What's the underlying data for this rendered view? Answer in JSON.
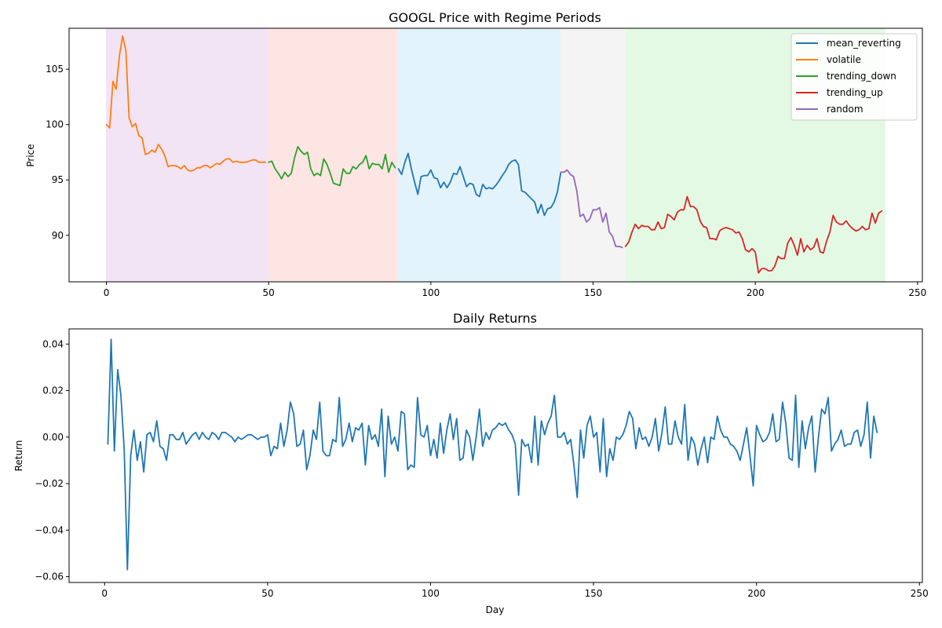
{
  "chart_data": [
    {
      "type": "line",
      "title": "GOOGL Price with Regime Periods",
      "xlabel": "",
      "ylabel": "Price",
      "xlim": [
        -11.5,
        251.5
      ],
      "ylim": [
        85.8,
        108.7
      ],
      "xticks": [
        0,
        50,
        100,
        150,
        200,
        250
      ],
      "yticks": [
        90,
        95,
        100,
        105
      ],
      "legend_placement": "top-right",
      "regions": [
        {
          "x0": 0,
          "x1": 50,
          "color": "#f2e3f5"
        },
        {
          "x0": 50,
          "x1": 90,
          "color": "#fde5e3"
        },
        {
          "x0": 90,
          "x1": 140,
          "color": "#e3f3fc"
        },
        {
          "x0": 140,
          "x1": 160,
          "color": "#f4f4f4"
        },
        {
          "x0": 160,
          "x1": 240,
          "color": "#e3f9e3"
        }
      ],
      "series": [
        {
          "name": "mean_reverting",
          "color": "#1f77b4",
          "segments": [
            {
              "x0": 90,
              "values": [
                96.0,
                95.5,
                96.6,
                97.4,
                96.0,
                94.8,
                93.7,
                95.3,
                95.4,
                95.4,
                95.9,
                95.2,
                95.1,
                94.3,
                94.8,
                94.3,
                94.8,
                95.6,
                95.5,
                96.2,
                95.3,
                94.4,
                94.7,
                94.6,
                93.7,
                93.5,
                94.6,
                94.2,
                94.3,
                94.2,
                94.5,
                94.9,
                95.4,
                95.8,
                96.4,
                96.7,
                96.8,
                96.4,
                94.0,
                93.9,
                93.6,
                93.3,
                93.0,
                92.0,
                92.8,
                91.8,
                92.4,
                92.5,
                93.0,
                93.9,
                95.6
              ]
            }
          ]
        },
        {
          "name": "volatile",
          "color": "#ff7f0e",
          "segments": [
            {
              "x0": 0,
              "values": [
                100.0,
                99.7,
                103.9,
                103.2,
                106.2,
                108.0,
                106.7,
                100.6,
                99.8,
                100.1,
                99.0,
                98.8,
                97.3,
                97.4,
                97.7,
                97.5,
                98.2,
                97.8,
                97.2,
                96.2,
                96.3,
                96.3,
                96.2,
                96.0,
                96.3,
                95.9,
                95.8,
                95.9,
                96.1,
                96.1,
                96.3,
                96.3,
                96.1,
                96.3,
                96.5,
                96.4,
                96.7,
                96.9,
                96.9,
                96.6,
                96.7,
                96.6,
                96.6,
                96.6,
                96.7,
                96.8,
                96.8,
                96.6,
                96.6,
                96.6
              ]
            }
          ]
        },
        {
          "name": "trending_down",
          "color": "#2ca02c",
          "segments": [
            {
              "x0": 50,
              "values": [
                96.6,
                96.7,
                96.0,
                95.6,
                95.1,
                95.7,
                95.3,
                95.6,
                97.0,
                98.0,
                97.6,
                97.3,
                97.5,
                96.0,
                95.4,
                95.6,
                95.4,
                96.9,
                96.4,
                95.6,
                94.7,
                94.6,
                94.5,
                96.0,
                95.6,
                95.6,
                96.2,
                96.0,
                96.4,
                96.6,
                97.2,
                96.0,
                96.5,
                96.4,
                96.4,
                96.0,
                97.3,
                95.7,
                96.6,
                96.1
              ]
            }
          ]
        },
        {
          "name": "trending_up",
          "color": "#d62728",
          "segments": [
            {
              "x0": 160,
              "values": [
                89.0,
                89.4,
                90.3,
                91.0,
                90.6,
                90.9,
                90.8,
                90.8,
                90.5,
                90.5,
                91.2,
                90.6,
                90.7,
                91.9,
                91.7,
                91.4,
                92.1,
                92.3,
                92.3,
                93.5,
                92.6,
                92.6,
                92.3,
                91.3,
                90.8,
                90.7,
                89.7,
                89.7,
                89.6,
                90.4,
                90.6,
                90.7,
                90.6,
                90.5,
                90.2,
                90.3,
                89.7,
                88.7,
                88.5,
                88.8,
                88.5,
                86.6,
                87.0,
                87.0,
                86.8,
                86.8,
                87.2,
                88.1,
                87.9,
                87.9,
                89.3,
                89.8,
                89.1,
                88.2,
                89.7,
                88.5,
                89.1,
                88.7,
                88.9,
                89.7,
                88.5,
                88.4,
                89.5,
                90.3,
                91.8,
                91.2,
                91.0,
                91.0,
                91.3,
                90.9,
                90.6,
                90.4,
                90.5,
                90.8,
                90.5,
                90.6,
                92.0,
                91.1,
                92.0,
                92.2
              ]
            }
          ]
        },
        {
          "name": "random",
          "color": "#9467bd",
          "segments": [
            {
              "x0": 140,
              "values": [
                95.7,
                95.7,
                95.9,
                95.5,
                95.3,
                94.0,
                91.7,
                91.9,
                91.2,
                91.5,
                92.3,
                92.3,
                92.5,
                91.2,
                92.0,
                90.3,
                89.9,
                89.0,
                89.0,
                88.9
              ]
            }
          ]
        }
      ]
    },
    {
      "type": "line",
      "title": "Daily Returns",
      "xlabel": "Day",
      "ylabel": "Return",
      "xlim": [
        -10.9,
        250.9
      ],
      "ylim": [
        -0.0625,
        0.0465
      ],
      "xticks": [
        0,
        50,
        100,
        150,
        200,
        250
      ],
      "yticks": [
        -0.06,
        -0.04,
        -0.02,
        0.0,
        0.02,
        0.04
      ],
      "ytick_labels": [
        "−0.06",
        "−0.04",
        "−0.02",
        "0.00",
        "0.02",
        "0.04"
      ],
      "series": [
        {
          "color": "#1f77b4",
          "x0": 1,
          "values": [
            -0.003,
            0.042,
            -0.006,
            0.029,
            0.018,
            -0.005,
            -0.057,
            -0.008,
            0.003,
            -0.01,
            -0.002,
            -0.015,
            0.001,
            0.002,
            -0.002,
            0.007,
            -0.004,
            -0.005,
            -0.01,
            0.001,
            0.001,
            -0.001,
            -0.001,
            0.002,
            -0.003,
            -0.001,
            0.001,
            0.002,
            -0.001,
            0.002,
            0.0,
            -0.001,
            0.002,
            0.001,
            -0.001,
            0.002,
            0.002,
            0.001,
            0.0,
            -0.002,
            0.0,
            -0.001,
            0.0,
            0.001,
            0.001,
            0.0,
            -0.001,
            0.0,
            0.0,
            0.001,
            -0.008,
            -0.004,
            -0.005,
            0.006,
            -0.004,
            0.003,
            0.015,
            0.01,
            -0.004,
            -0.003,
            0.003,
            -0.014,
            -0.008,
            0.003,
            -0.001,
            0.015,
            -0.006,
            -0.008,
            -0.008,
            -0.001,
            -0.002,
            0.017,
            -0.004,
            -0.001,
            0.006,
            -0.002,
            0.004,
            0.003,
            0.006,
            -0.012,
            0.005,
            -0.001,
            0.001,
            -0.004,
            0.012,
            -0.017,
            0.009,
            -0.003,
            0.0,
            -0.006,
            0.011,
            0.01,
            -0.014,
            -0.012,
            -0.013,
            0.017,
            0.001,
            0.0,
            0.005,
            -0.008,
            -0.001,
            -0.009,
            0.006,
            -0.007,
            0.003,
            0.01,
            -0.001,
            0.008,
            -0.01,
            -0.009,
            0.003,
            0.0,
            -0.01,
            0.0,
            0.012,
            -0.004,
            0.002,
            -0.001,
            0.003,
            0.004,
            0.006,
            0.005,
            0.006,
            0.003,
            0.001,
            -0.003,
            -0.025,
            -0.001,
            -0.004,
            -0.003,
            -0.011,
            0.009,
            -0.012,
            0.007,
            0.001,
            0.006,
            0.009,
            0.018,
            0.0,
            0.0,
            0.002,
            -0.003,
            -0.001,
            -0.012,
            -0.026,
            0.003,
            -0.009,
            0.005,
            0.009,
            0.0,
            0.002,
            -0.015,
            0.008,
            -0.017,
            -0.005,
            -0.01,
            0.0,
            -0.001,
            0.001,
            0.005,
            0.011,
            0.008,
            -0.005,
            0.004,
            -0.001,
            0.0,
            -0.004,
            0.0,
            0.008,
            -0.006,
            0.002,
            0.013,
            -0.003,
            -0.003,
            0.007,
            0.0,
            -0.003,
            0.014,
            -0.01,
            0.0,
            -0.003,
            -0.012,
            -0.005,
            0.0,
            -0.011,
            0.0,
            -0.001,
            0.009,
            0.003,
            0.0,
            0.0,
            -0.003,
            -0.004,
            -0.006,
            -0.01,
            -0.003,
            0.004,
            -0.008,
            -0.021,
            0.005,
            0.001,
            -0.002,
            -0.001,
            0.002,
            0.01,
            -0.002,
            -0.001,
            0.015,
            0.006,
            -0.009,
            -0.01,
            0.018,
            -0.013,
            0.007,
            -0.005,
            0.004,
            0.009,
            -0.015,
            0.0,
            0.012,
            0.01,
            0.017,
            -0.006,
            -0.003,
            -0.001,
            0.003,
            -0.004,
            -0.003,
            -0.003,
            0.002,
            0.003,
            -0.004,
            0.001,
            0.015,
            -0.009,
            0.009,
            0.002
          ]
        }
      ]
    }
  ]
}
